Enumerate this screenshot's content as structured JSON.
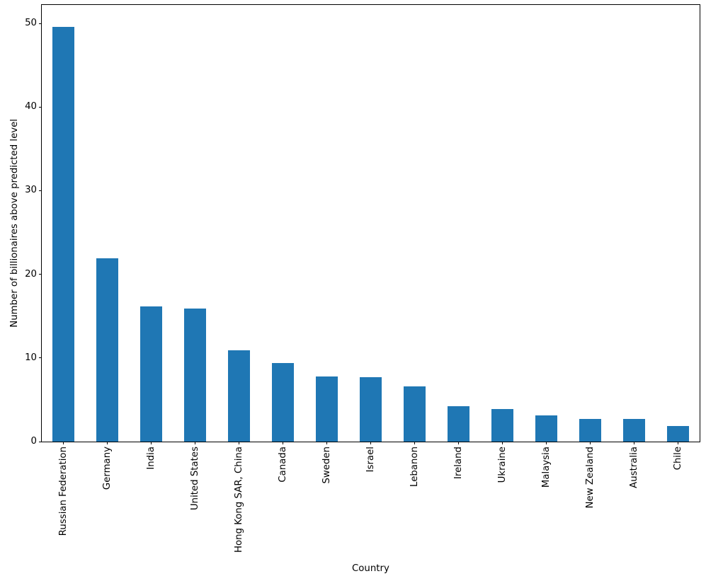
{
  "chart_data": {
    "type": "bar",
    "title": "",
    "xlabel": "Country",
    "ylabel": "Number of billionaires above predicted level",
    "categories": [
      "Russian Federation",
      "Germany",
      "India",
      "United States",
      "Hong Kong SAR, China",
      "Canada",
      "Sweden",
      "Israel",
      "Lebanon",
      "Ireland",
      "Ukraine",
      "Malaysia",
      "New Zealand",
      "Australia",
      "Chile"
    ],
    "values": [
      49.6,
      21.9,
      16.2,
      15.9,
      10.9,
      9.4,
      7.8,
      7.7,
      6.6,
      4.2,
      3.9,
      3.1,
      2.7,
      2.7,
      1.9
    ],
    "yticks": [
      0,
      10,
      20,
      30,
      40,
      50
    ],
    "ylim": [
      0,
      52.2
    ],
    "bar_color": "#1f77b4",
    "axis_color": "#000000",
    "background_color": "#ffffff",
    "grid": false,
    "legend_position": "none",
    "bar_width_fraction": 0.5,
    "x_tick_rotation_deg": 90
  }
}
